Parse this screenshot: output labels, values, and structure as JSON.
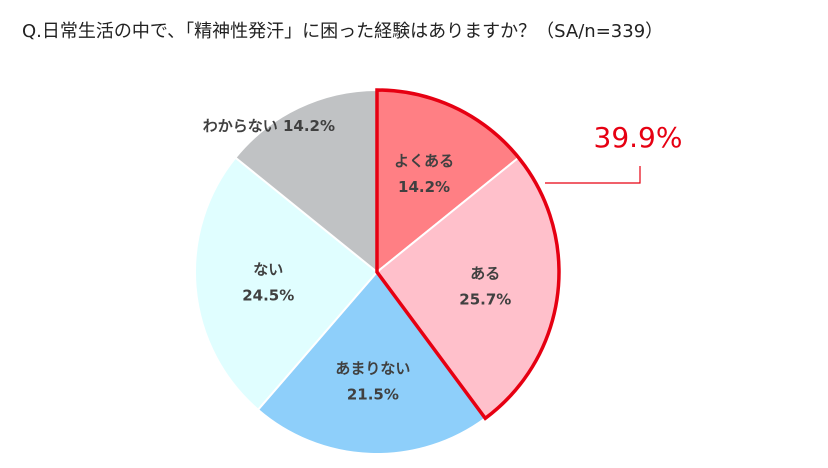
{
  "chart_data": {
    "type": "pie",
    "title": "Q.日常生活の中で、「精神性発汗」に困った経験はありますか？（SA/n=339）",
    "categories": [
      "よくある",
      "ある",
      "あまりない",
      "ない",
      "わからない"
    ],
    "values": [
      14.2,
      25.7,
      21.5,
      24.5,
      14.2
    ],
    "value_labels": [
      "14.2%",
      "25.7%",
      "21.5%",
      "24.5%",
      "14.2%"
    ],
    "colors": [
      "#ff7f84",
      "#ffc0cb",
      "#8ecffa",
      "#e0feff",
      "#c0c2c4"
    ],
    "annotation": "39.9%",
    "highlight_color": "#e60012"
  }
}
